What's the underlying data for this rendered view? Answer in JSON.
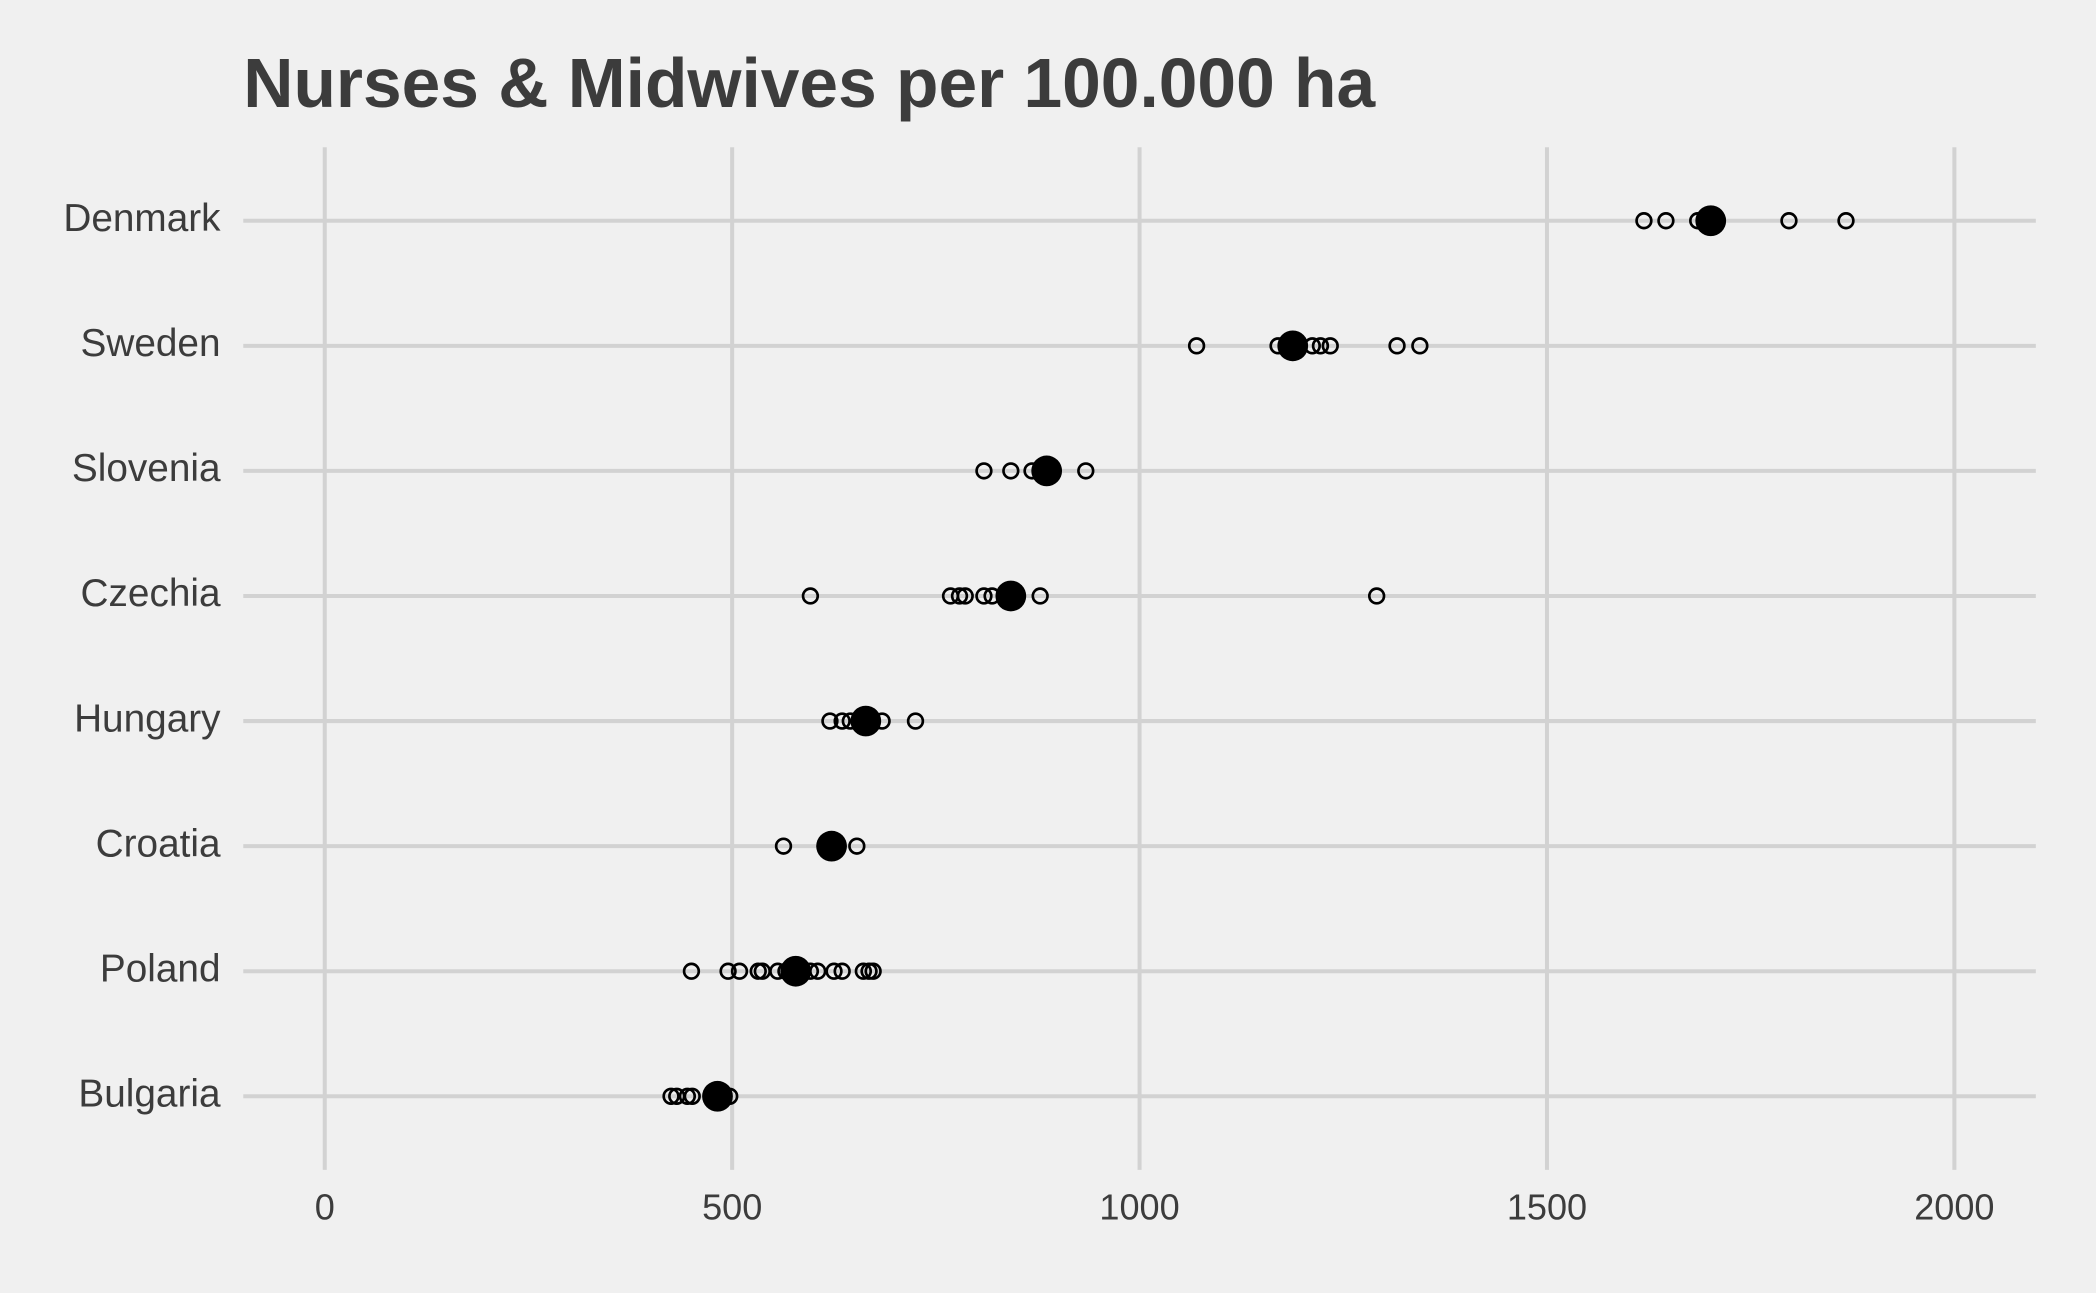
{
  "chart_data": {
    "type": "dot",
    "title": "Nurses & Midwives per 100.000 ha",
    "categories": [
      "Denmark",
      "Sweden",
      "Slovenia",
      "Czechia",
      "Hungary",
      "Croatia",
      "Poland",
      "Bulgaria"
    ],
    "values": [
      1701,
      1188,
      886,
      842,
      664,
      622,
      578,
      482
    ],
    "points": [
      [
        1619,
        1646,
        1685,
        1797,
        1867
      ],
      [
        1070,
        1170,
        1180,
        1212,
        1222,
        1234,
        1316,
        1344
      ],
      [
        809,
        842,
        868,
        934
      ],
      [
        596,
        768,
        779,
        786,
        809,
        819,
        878,
        1291
      ],
      [
        620,
        635,
        645,
        684,
        725
      ],
      [
        563,
        653
      ],
      [
        450,
        495,
        509,
        532,
        537,
        556,
        566,
        596,
        605,
        625,
        635,
        661,
        668,
        673
      ],
      [
        425,
        432,
        445,
        451,
        497
      ]
    ],
    "color": "#000000",
    "xlim": [
      -100,
      2100
    ],
    "xticks": [
      0,
      500,
      1000,
      1500,
      2000
    ],
    "grid": true
  }
}
